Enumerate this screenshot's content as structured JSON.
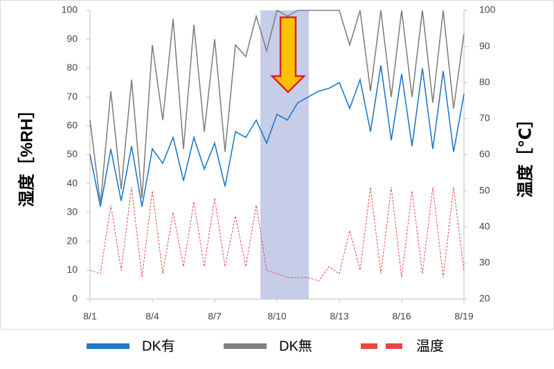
{
  "chart_data": {
    "type": "line",
    "y_label": "湿度［%RH］",
    "y2_label": "温度［℃］",
    "x": [
      0,
      0.5,
      1,
      1.5,
      2,
      2.5,
      3,
      3.5,
      4,
      4.5,
      5,
      5.5,
      6,
      6.5,
      7,
      7.5,
      8,
      8.5,
      9,
      9.5,
      10,
      10.5,
      11,
      11.5,
      12,
      12.5,
      13,
      13.5,
      14,
      14.5,
      15,
      15.5,
      16,
      16.5,
      17,
      17.5,
      18
    ],
    "xlim": [
      0,
      18
    ],
    "xticks": [
      {
        "value": 0,
        "label": "8/1"
      },
      {
        "value": 3,
        "label": "8/4"
      },
      {
        "value": 6,
        "label": "8/7"
      },
      {
        "value": 9,
        "label": "8/10"
      },
      {
        "value": 12,
        "label": "8/13"
      },
      {
        "value": 15,
        "label": "8/16"
      },
      {
        "value": 18,
        "label": "8/19"
      }
    ],
    "ylim": [
      0,
      100
    ],
    "yticks": [
      0,
      10,
      20,
      30,
      40,
      50,
      60,
      70,
      80,
      90,
      100
    ],
    "y2lim": [
      20,
      100
    ],
    "y2ticks": [
      20,
      30,
      40,
      50,
      60,
      70,
      80,
      90,
      100
    ],
    "series": [
      {
        "name": "DK有",
        "color": "#1f77c8",
        "dash": false,
        "values": [
          50,
          32,
          52,
          34,
          53,
          32,
          52,
          47,
          56,
          41,
          56,
          45,
          54,
          39,
          58,
          56,
          62,
          54,
          64,
          62,
          68,
          70,
          72,
          73,
          75,
          66,
          76,
          58,
          81,
          55,
          78,
          53,
          80,
          52,
          79,
          51,
          71
        ]
      },
      {
        "name": "DK無",
        "color": "#808080",
        "dash": false,
        "values": [
          62,
          33,
          72,
          38,
          76,
          35,
          88,
          62,
          97,
          52,
          95,
          58,
          90,
          51,
          88,
          84,
          98,
          86,
          100,
          98,
          100,
          100,
          100,
          100,
          100,
          88,
          100,
          72,
          100,
          70,
          100,
          70,
          100,
          68,
          100,
          66,
          92
        ]
      },
      {
        "name": "温度",
        "color": "#ee4444",
        "dash": true,
        "axis": "y2",
        "values": [
          28,
          27,
          46,
          28,
          51,
          26,
          50,
          27,
          44,
          29,
          47,
          29,
          48,
          29,
          43,
          29,
          46,
          28,
          27,
          26,
          26,
          26,
          25,
          29,
          27,
          39,
          28,
          51,
          27,
          51,
          26,
          50,
          27,
          51,
          26,
          51,
          28
        ]
      }
    ]
  }
}
